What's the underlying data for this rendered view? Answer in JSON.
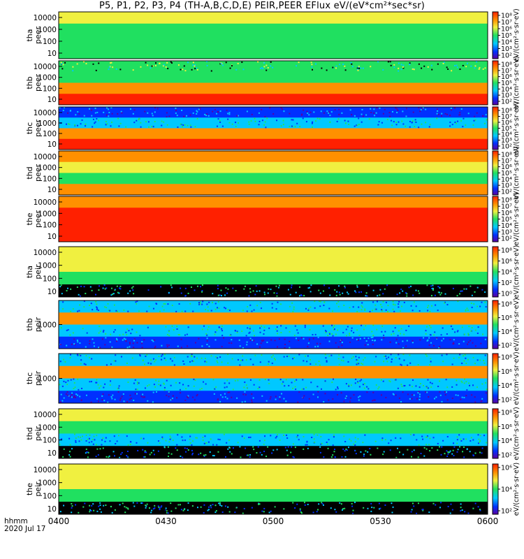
{
  "title": "P5, P1, P2, P3, P4 (TH-A,B,C,D,E) PEIR,PEER EFlux eV/(eV*cm²*sec*sr)",
  "colors": {
    "black": "#000000",
    "purple": "#5a00a0",
    "blue": "#0030ff",
    "cyan": "#00c8ff",
    "green": "#20e060",
    "yellow": "#f0f040",
    "orange": "#ff9000",
    "red": "#ff2000"
  },
  "chart_data": {
    "type": "heatmap",
    "x_axis": {
      "label_lines": [
        "hhmm",
        "2020 Jul 17"
      ],
      "range": [
        "0400",
        "0600"
      ],
      "ticks": [
        "0400",
        "0430",
        "0500",
        "0530",
        "0600"
      ]
    },
    "color_scale": "log",
    "panels": [
      {
        "id": "tha_peer",
        "ylabel_lines": [
          "tha",
          "peer"
        ],
        "yticks": [
          "10000",
          "1000",
          "100",
          "10"
        ],
        "ylog": true,
        "colorbar_ticks": [
          "10⁸",
          "10⁷",
          "10⁶",
          "10⁵",
          "10⁴",
          "10³",
          "10²"
        ],
        "colorbar_label": "eV/(cm²·s·sr·eV)",
        "bands": [
          "yellow",
          "green",
          "green",
          "green"
        ]
      },
      {
        "id": "thb_peer",
        "ylabel_lines": [
          "thb",
          "peer"
        ],
        "yticks": [
          "10000",
          "1000",
          "100",
          "10"
        ],
        "ylog": true,
        "colorbar_ticks": [
          "10⁸",
          "10⁷",
          "10⁶",
          "10⁵",
          "10⁴",
          "10³",
          "10²"
        ],
        "colorbar_label": "eV/(cm²·s·sr·eV)",
        "bands": [
          "mixed",
          "green",
          "orange",
          "red"
        ]
      },
      {
        "id": "thc_peer",
        "ylabel_lines": [
          "thc",
          "peer"
        ],
        "yticks": [
          "10000",
          "1000",
          "100",
          "10"
        ],
        "ylog": true,
        "colorbar_ticks": [
          "10⁸",
          "10⁷",
          "10⁶",
          "10⁵",
          "10⁴",
          "10³",
          "10²"
        ],
        "colorbar_label": "eV/(cm²·s·sr·eV)",
        "bands": [
          "blue",
          "cyan",
          "orange",
          "red"
        ]
      },
      {
        "id": "thd_peer",
        "ylabel_lines": [
          "thd",
          "peer"
        ],
        "yticks": [
          "10000",
          "1000",
          "100",
          "10"
        ],
        "ylog": true,
        "colorbar_ticks": [
          "10⁸",
          "10⁷",
          "10⁶",
          "10⁵",
          "10⁴",
          "10³",
          "10²"
        ],
        "colorbar_label": "eV/(cm²·s·sr·eV)",
        "bands": [
          "orange",
          "yellow",
          "green",
          "orange"
        ]
      },
      {
        "id": "the_peer",
        "ylabel_lines": [
          "the",
          "peer"
        ],
        "yticks": [
          "10000",
          "1000",
          "100",
          "10"
        ],
        "ylog": true,
        "colorbar_ticks": [
          "10⁸",
          "10⁷",
          "10⁶",
          "10⁵",
          "10⁴",
          "10³",
          "10²"
        ],
        "colorbar_label": "eV/(cm²·s·sr·eV)",
        "bands": [
          "orange",
          "red",
          "red",
          "red"
        ]
      },
      {
        "id": "tha_peir",
        "ylabel_lines": [
          "tha",
          "peir"
        ],
        "yticks": [
          "10000",
          "1000",
          "100",
          "10"
        ],
        "ylog": true,
        "colorbar_ticks": [
          "10⁸",
          "10⁶",
          "10⁴",
          "10²",
          "10⁰"
        ],
        "colorbar_label": "eV/(cm²·s·sr·eV)",
        "bands": [
          "yellow",
          "yellow",
          "green",
          "black"
        ]
      },
      {
        "id": "thb_peir",
        "ylabel_lines": [
          "thb",
          "peir"
        ],
        "yticks": [
          "1000"
        ],
        "ylog": true,
        "colorbar_ticks": [
          "10⁸",
          "10⁶",
          "10⁴",
          "10²"
        ],
        "colorbar_label": "eV/(cm²·s·sr·eV)",
        "bands": [
          "cyan",
          "orange",
          "cyan",
          "blue"
        ]
      },
      {
        "id": "thc_peir",
        "ylabel_lines": [
          "thc",
          "peir"
        ],
        "yticks": [
          "1000"
        ],
        "ylog": true,
        "colorbar_ticks": [
          "10⁸",
          "10⁶",
          "10⁴",
          "10²"
        ],
        "colorbar_label": "eV/(cm²·s·sr·eV)",
        "bands": [
          "cyan",
          "orange",
          "cyan",
          "blue"
        ]
      },
      {
        "id": "thd_peir",
        "ylabel_lines": [
          "thd",
          "peir"
        ],
        "yticks": [
          "10000",
          "1000",
          "100",
          "10"
        ],
        "ylog": true,
        "colorbar_ticks": [
          "10⁸",
          "10⁶",
          "10⁴",
          "10²"
        ],
        "colorbar_label": "eV/(cm²·s·sr·eV)",
        "bands": [
          "yellow",
          "green",
          "cyan",
          "black"
        ]
      },
      {
        "id": "the_peir",
        "ylabel_lines": [
          "the",
          "peir"
        ],
        "yticks": [
          "10000",
          "1000",
          "100",
          "10"
        ],
        "ylog": true,
        "colorbar_ticks": [
          "10⁶",
          "10⁴",
          "10²"
        ],
        "colorbar_label": "eV/(cm²·s·sr·eV)",
        "bands": [
          "yellow",
          "yellow",
          "green",
          "black"
        ]
      }
    ]
  }
}
